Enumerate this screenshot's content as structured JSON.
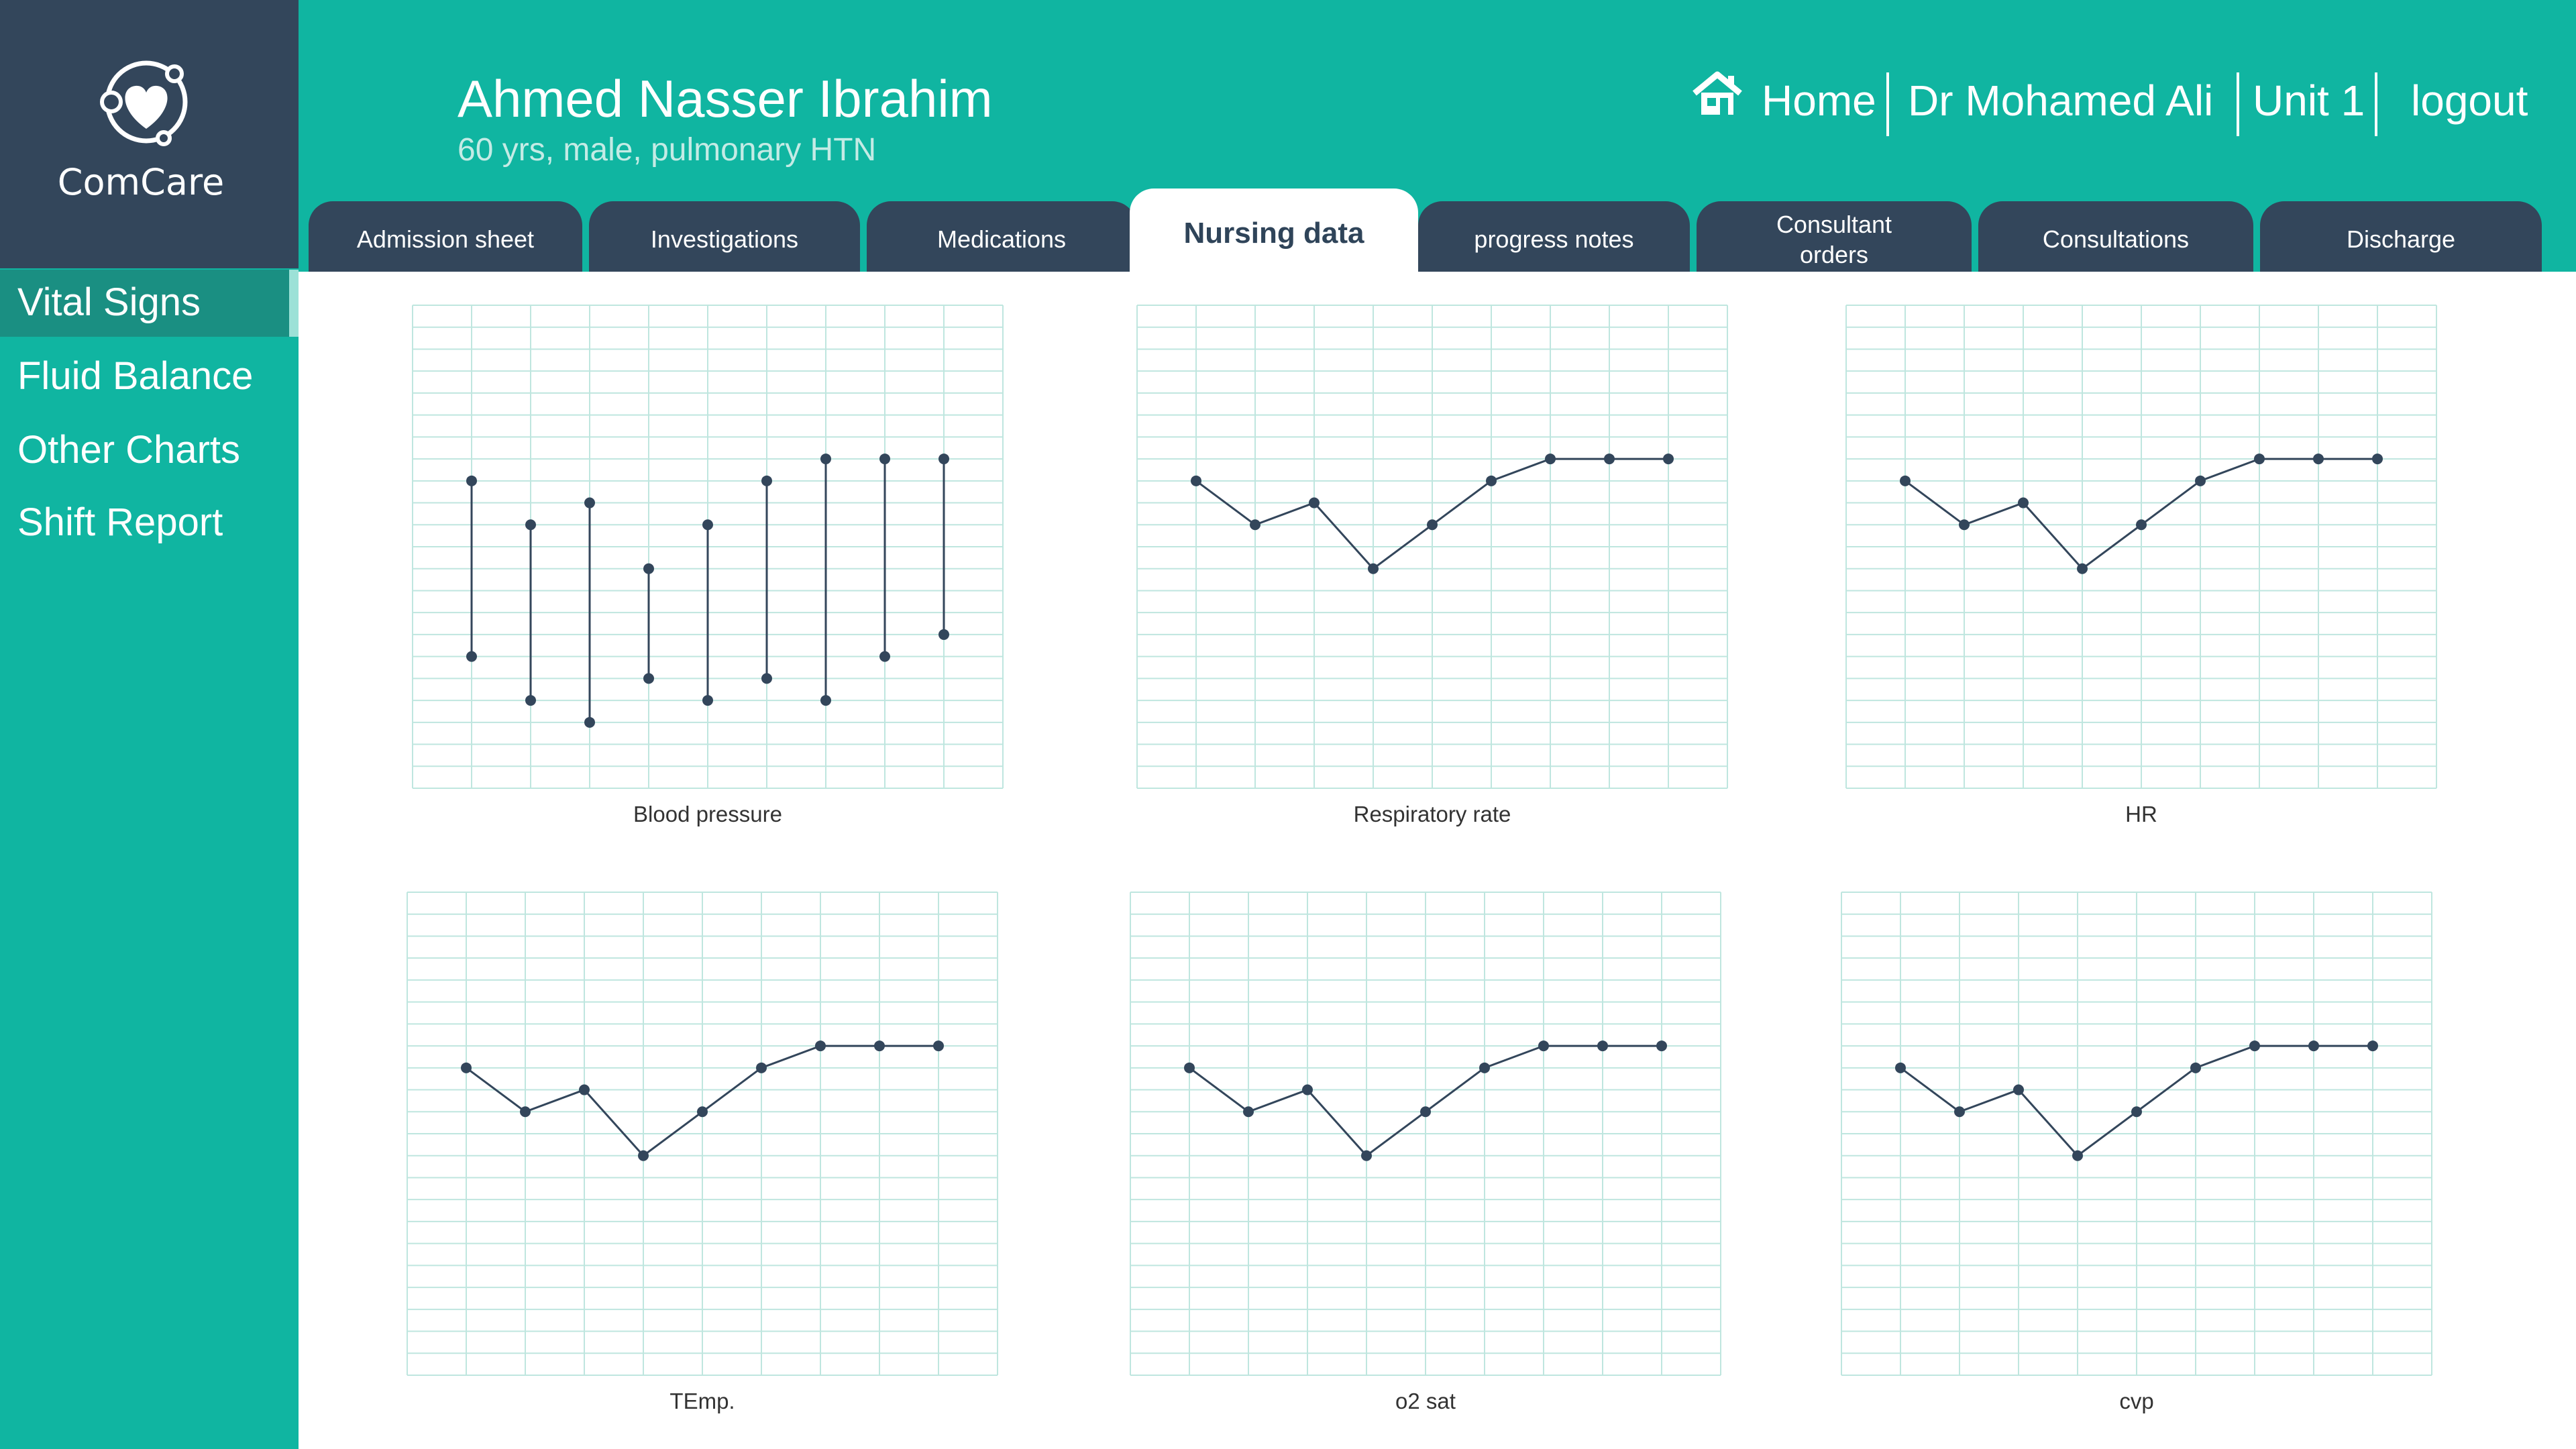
{
  "app": {
    "name": "ComCare"
  },
  "patient": {
    "name": "Ahmed Nasser Ibrahim",
    "info": "60 yrs, male, pulmonary HTN"
  },
  "topnav": {
    "home": "Home",
    "doctor": "Dr Mohamed Ali",
    "unit": "Unit 1",
    "logout": "logout"
  },
  "tabs": [
    {
      "label": "Admission sheet"
    },
    {
      "label": "Investigations"
    },
    {
      "label": "Medications"
    },
    {
      "label": "Nursing data"
    },
    {
      "label": "progress notes"
    },
    {
      "label": "Consultant\norders"
    },
    {
      "label": "Consultations"
    },
    {
      "label": "Discharge"
    }
  ],
  "sidebar": {
    "items": [
      {
        "label": "Vital Signs"
      },
      {
        "label": "Fluid Balance"
      },
      {
        "label": "Other Charts"
      },
      {
        "label": "Shift Report"
      }
    ]
  },
  "colors": {
    "teal": "#10b5a1",
    "navy": "#33465b",
    "grid": "#bfe6df",
    "line": "#33465b"
  },
  "icons": {
    "logo": "heart-network-icon",
    "home": "home-icon"
  },
  "chart_data": [
    {
      "type": "range",
      "title": "Blood pressure",
      "ylim": [
        0,
        22
      ],
      "high": [
        14,
        12,
        13,
        10,
        12,
        14,
        15,
        15,
        15
      ],
      "low": [
        6,
        4,
        3,
        5,
        4,
        5,
        4,
        6,
        7
      ]
    },
    {
      "type": "line",
      "title": "Respiratory rate",
      "ylim": [
        0,
        22
      ],
      "values": [
        14,
        12,
        13,
        10,
        12,
        14,
        15,
        15,
        15
      ]
    },
    {
      "type": "line",
      "title": "HR",
      "ylim": [
        0,
        22
      ],
      "values": [
        14,
        12,
        13,
        10,
        12,
        14,
        15,
        15,
        15
      ]
    },
    {
      "type": "line",
      "title": "TEmp.",
      "ylim": [
        0,
        22
      ],
      "values": [
        14,
        12,
        13,
        10,
        12,
        14,
        15,
        15,
        15
      ]
    },
    {
      "type": "line",
      "title": "o2 sat",
      "ylim": [
        0,
        22
      ],
      "values": [
        14,
        12,
        13,
        10,
        12,
        14,
        15,
        15,
        15
      ]
    },
    {
      "type": "line",
      "title": "cvp",
      "ylim": [
        0,
        22
      ],
      "values": [
        14,
        12,
        13,
        10,
        12,
        14,
        15,
        15,
        15
      ]
    }
  ]
}
